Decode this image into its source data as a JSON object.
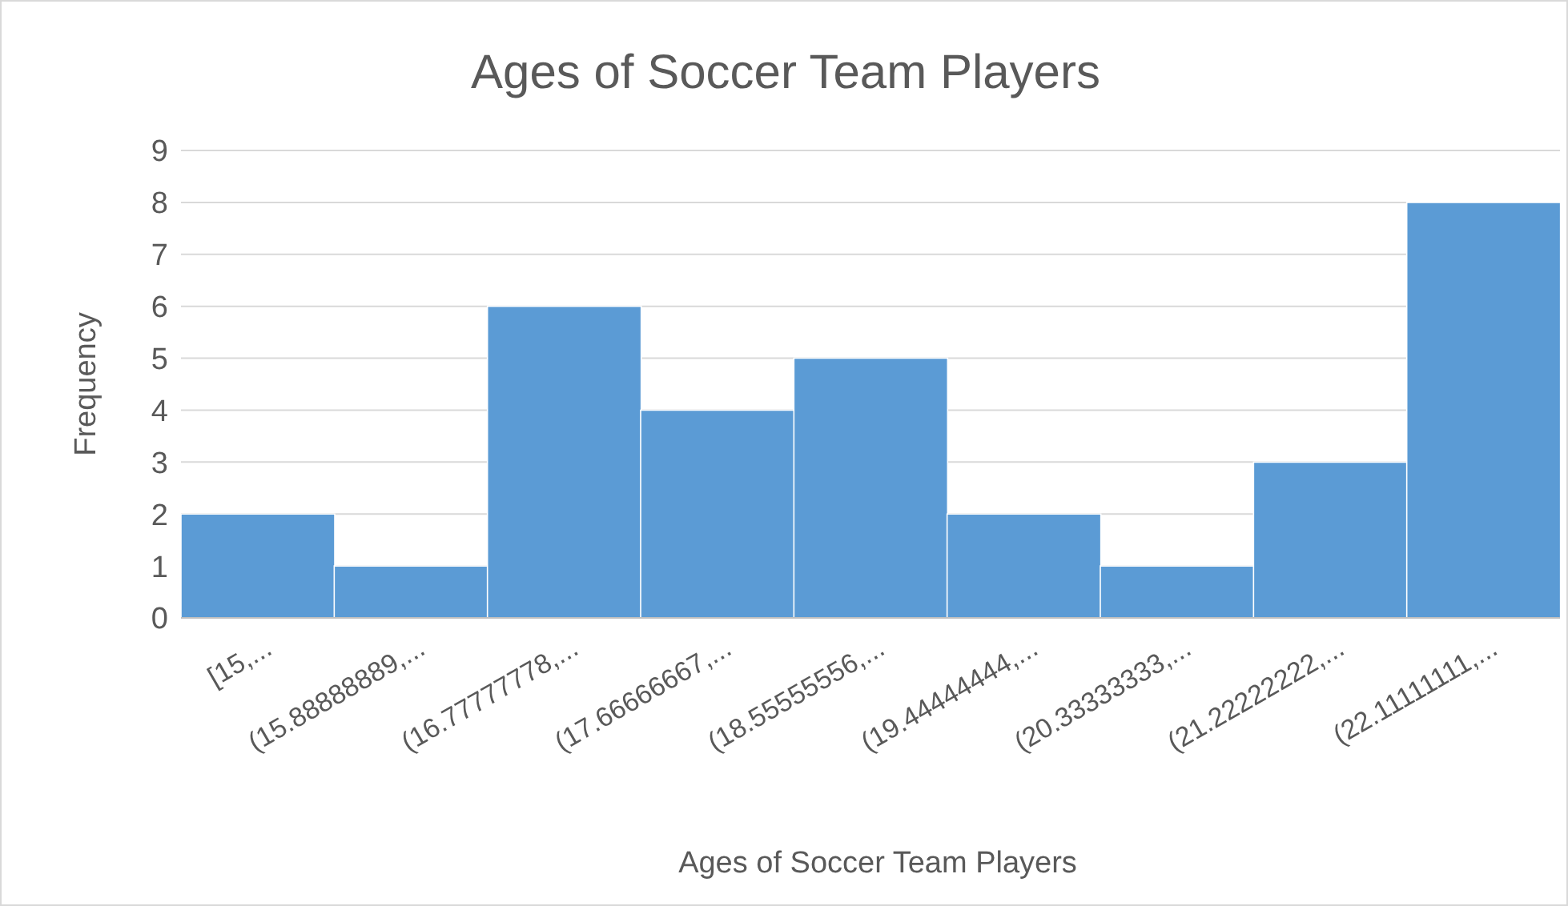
{
  "chart_data": {
    "type": "histogram",
    "title": "Ages of Soccer Team Players",
    "xlabel": "Ages of Soccer Team Players",
    "ylabel": "Frequency",
    "categories": [
      "[15,...",
      "(15.88888889,...",
      "(16.77777778,...",
      "(17.66666667,...",
      "(18.55555556,...",
      "(19.44444444,...",
      "(20.33333333,...",
      "(21.22222222,...",
      "(22.11111111,..."
    ],
    "values": [
      2,
      1,
      6,
      4,
      5,
      2,
      1,
      3,
      8
    ],
    "color": "#5b9bd5",
    "ylim": [
      0,
      9
    ],
    "yticks": [
      0,
      1,
      2,
      3,
      4,
      5,
      6,
      7,
      8,
      9
    ],
    "grid": "y"
  }
}
